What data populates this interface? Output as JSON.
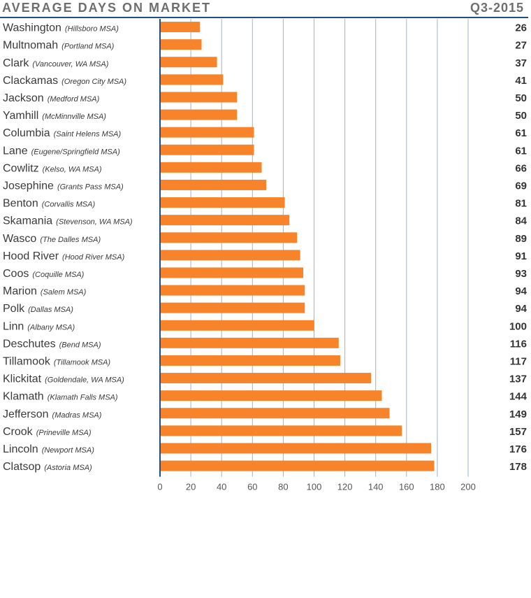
{
  "header": {
    "title": "AVERAGE DAYS ON MARKET",
    "period": "Q3-2015"
  },
  "colors": {
    "bar": "#f7842a",
    "grid": "#9db4cc",
    "axis": "#1f4e8c"
  },
  "chart_data": {
    "type": "bar",
    "orientation": "horizontal",
    "title": "AVERAGE DAYS ON MARKET",
    "subtitle": "Q3-2015",
    "xlim": [
      0,
      200
    ],
    "xticks": [
      0,
      20,
      40,
      60,
      80,
      100,
      120,
      140,
      160,
      180,
      200
    ],
    "categories": [
      {
        "county": "Washington",
        "msa": "(Hillsboro MSA)",
        "value": 26
      },
      {
        "county": "Multnomah",
        "msa": "(Portland MSA)",
        "value": 27
      },
      {
        "county": "Clark",
        "msa": "(Vancouver, WA MSA)",
        "value": 37
      },
      {
        "county": "Clackamas",
        "msa": "(Oregon City MSA)",
        "value": 41
      },
      {
        "county": "Jackson",
        "msa": "(Medford MSA)",
        "value": 50
      },
      {
        "county": "Yamhill",
        "msa": "(McMinnville MSA)",
        "value": 50
      },
      {
        "county": "Columbia",
        "msa": "(Saint Helens MSA)",
        "value": 61
      },
      {
        "county": "Lane",
        "msa": "(Eugene/Springfield MSA)",
        "value": 61
      },
      {
        "county": "Cowlitz",
        "msa": "(Kelso, WA MSA)",
        "value": 66
      },
      {
        "county": "Josephine",
        "msa": "(Grants Pass MSA)",
        "value": 69
      },
      {
        "county": "Benton",
        "msa": "(Corvallis MSA)",
        "value": 81
      },
      {
        "county": "Skamania",
        "msa": "(Stevenson, WA MSA)",
        "value": 84
      },
      {
        "county": "Wasco",
        "msa": "(The Dalles MSA)",
        "value": 89
      },
      {
        "county": "Hood River",
        "msa": "(Hood River MSA)",
        "value": 91
      },
      {
        "county": "Coos",
        "msa": "(Coquille MSA)",
        "value": 93
      },
      {
        "county": "Marion",
        "msa": "(Salem MSA)",
        "value": 94
      },
      {
        "county": "Polk",
        "msa": "(Dallas MSA)",
        "value": 94
      },
      {
        "county": "Linn",
        "msa": "(Albany MSA)",
        "value": 100
      },
      {
        "county": "Deschutes",
        "msa": "(Bend MSA)",
        "value": 116
      },
      {
        "county": "Tillamook",
        "msa": "(Tillamook MSA)",
        "value": 117
      },
      {
        "county": "Klickitat",
        "msa": "(Goldendale, WA MSA)",
        "value": 137
      },
      {
        "county": "Klamath",
        "msa": "(Klamath Falls MSA)",
        "value": 144
      },
      {
        "county": "Jefferson",
        "msa": "(Madras MSA)",
        "value": 149
      },
      {
        "county": "Crook",
        "msa": "(Prineville MSA)",
        "value": 157
      },
      {
        "county": "Lincoln",
        "msa": "(Newport MSA)",
        "value": 176
      },
      {
        "county": "Clatsop",
        "msa": "(Astoria MSA)",
        "value": 178
      }
    ]
  }
}
